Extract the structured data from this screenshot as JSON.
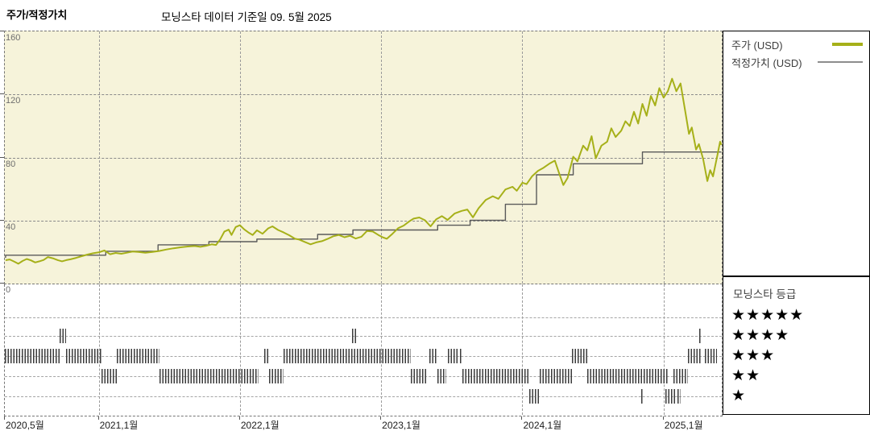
{
  "header": {
    "title": "주가/적정가치",
    "subtitle": "모닝스타 데이터 기준일 09. 5월 2025"
  },
  "legend": {
    "items": [
      {
        "name": "price",
        "label": "주가 (USD)",
        "color": "#a6b019",
        "thickness": 4
      },
      {
        "name": "fair-value",
        "label": "적정가치 (USD)",
        "color": "#8d8d8d",
        "thickness": 2
      }
    ]
  },
  "ratings_legend": {
    "title": "모닝스타 등급",
    "rows": [
      {
        "stars": 5,
        "label": "★★★★★"
      },
      {
        "stars": 4,
        "label": "★★★★"
      },
      {
        "stars": 3,
        "label": "★★★"
      },
      {
        "stars": 2,
        "label": "★★"
      },
      {
        "stars": 1,
        "label": "★"
      }
    ]
  },
  "chart_data": {
    "type": "line",
    "title": "주가/적정가치",
    "subtitle": "모닝스타 데이터 기준일 09. 5월 2025",
    "background": "#f6f3da",
    "grid": true,
    "legend_position": "right",
    "x_range": [
      2020.335,
      2025.412
    ],
    "y_range": [
      0,
      160
    ],
    "y_ticks": [
      {
        "value": 160,
        "label": "160"
      },
      {
        "value": 120,
        "label": "120"
      },
      {
        "value": 80,
        "label": "80"
      },
      {
        "value": 40,
        "label": "40"
      },
      {
        "value": 0,
        "label": "0"
      }
    ],
    "x_ticks": [
      {
        "year": 2020.335,
        "label": "2020,5월"
      },
      {
        "year": 2021.0,
        "label": "2021,1월"
      },
      {
        "year": 2022.0,
        "label": "2022,1월"
      },
      {
        "year": 2023.0,
        "label": "2023,1월"
      },
      {
        "year": 2024.0,
        "label": "2024,1월"
      },
      {
        "year": 2025.0,
        "label": "2025,1월"
      }
    ],
    "series": [
      {
        "name": "주가 (USD)",
        "style": "line",
        "color": "#a6b019",
        "stroke_width": 2,
        "points": [
          [
            2020.34,
            14.8
          ],
          [
            2020.37,
            15.3
          ],
          [
            2020.4,
            14.0
          ],
          [
            2020.43,
            12.6
          ],
          [
            2020.46,
            14.3
          ],
          [
            2020.49,
            15.6
          ],
          [
            2020.52,
            14.7
          ],
          [
            2020.55,
            13.4
          ],
          [
            2020.58,
            14.1
          ],
          [
            2020.61,
            15.0
          ],
          [
            2020.64,
            16.8
          ],
          [
            2020.68,
            15.9
          ],
          [
            2020.71,
            14.9
          ],
          [
            2020.74,
            14.1
          ],
          [
            2020.77,
            14.9
          ],
          [
            2020.8,
            15.4
          ],
          [
            2020.84,
            16.3
          ],
          [
            2020.88,
            17.4
          ],
          [
            2020.92,
            18.4
          ],
          [
            2020.96,
            19.2
          ],
          [
            2021.0,
            19.8
          ],
          [
            2021.04,
            21.0
          ],
          [
            2021.08,
            18.6
          ],
          [
            2021.12,
            19.4
          ],
          [
            2021.16,
            18.9
          ],
          [
            2021.2,
            19.6
          ],
          [
            2021.24,
            20.3
          ],
          [
            2021.28,
            20.1
          ],
          [
            2021.33,
            19.6
          ],
          [
            2021.38,
            20.1
          ],
          [
            2021.43,
            20.7
          ],
          [
            2021.48,
            21.6
          ],
          [
            2021.53,
            22.4
          ],
          [
            2021.58,
            23.0
          ],
          [
            2021.63,
            23.5
          ],
          [
            2021.68,
            23.8
          ],
          [
            2021.72,
            23.3
          ],
          [
            2021.76,
            24.0
          ],
          [
            2021.8,
            24.9
          ],
          [
            2021.83,
            24.5
          ],
          [
            2021.86,
            28.0
          ],
          [
            2021.89,
            33.0
          ],
          [
            2021.92,
            34.2
          ],
          [
            2021.94,
            30.8
          ],
          [
            2021.97,
            35.9
          ],
          [
            2022.0,
            37.0
          ],
          [
            2022.03,
            34.4
          ],
          [
            2022.06,
            32.4
          ],
          [
            2022.09,
            30.8
          ],
          [
            2022.12,
            33.8
          ],
          [
            2022.16,
            31.6
          ],
          [
            2022.2,
            35.0
          ],
          [
            2022.23,
            36.3
          ],
          [
            2022.27,
            34.0
          ],
          [
            2022.31,
            32.4
          ],
          [
            2022.35,
            30.6
          ],
          [
            2022.39,
            28.4
          ],
          [
            2022.42,
            27.9
          ],
          [
            2022.46,
            26.4
          ],
          [
            2022.5,
            24.9
          ],
          [
            2022.54,
            26.1
          ],
          [
            2022.58,
            26.9
          ],
          [
            2022.62,
            28.3
          ],
          [
            2022.66,
            30.0
          ],
          [
            2022.7,
            30.8
          ],
          [
            2022.74,
            29.4
          ],
          [
            2022.78,
            30.3
          ],
          [
            2022.82,
            28.6
          ],
          [
            2022.86,
            29.7
          ],
          [
            2022.9,
            33.4
          ],
          [
            2022.94,
            33.0
          ],
          [
            2022.98,
            30.8
          ],
          [
            2023.01,
            29.4
          ],
          [
            2023.04,
            28.4
          ],
          [
            2023.08,
            31.6
          ],
          [
            2023.12,
            35.1
          ],
          [
            2023.16,
            36.8
          ],
          [
            2023.2,
            39.5
          ],
          [
            2023.23,
            41.2
          ],
          [
            2023.27,
            41.9
          ],
          [
            2023.31,
            40.2
          ],
          [
            2023.35,
            36.3
          ],
          [
            2023.39,
            40.8
          ],
          [
            2023.43,
            42.8
          ],
          [
            2023.47,
            40.4
          ],
          [
            2023.52,
            44.4
          ],
          [
            2023.57,
            46.1
          ],
          [
            2023.61,
            47.0
          ],
          [
            2023.65,
            42.0
          ],
          [
            2023.69,
            47.8
          ],
          [
            2023.74,
            53.0
          ],
          [
            2023.79,
            55.4
          ],
          [
            2023.83,
            53.8
          ],
          [
            2023.88,
            59.7
          ],
          [
            2023.93,
            61.4
          ],
          [
            2023.96,
            58.9
          ],
          [
            2024.0,
            64.0
          ],
          [
            2024.03,
            63.1
          ],
          [
            2024.07,
            68.2
          ],
          [
            2024.11,
            71.5
          ],
          [
            2024.15,
            73.5
          ],
          [
            2024.19,
            76.0
          ],
          [
            2024.23,
            78.0
          ],
          [
            2024.26,
            70.0
          ],
          [
            2024.29,
            62.5
          ],
          [
            2024.32,
            67.0
          ],
          [
            2024.36,
            80.5
          ],
          [
            2024.39,
            77.5
          ],
          [
            2024.43,
            87.5
          ],
          [
            2024.46,
            84.5
          ],
          [
            2024.49,
            93.5
          ],
          [
            2024.52,
            79.5
          ],
          [
            2024.56,
            87.5
          ],
          [
            2024.6,
            90.0
          ],
          [
            2024.63,
            98.5
          ],
          [
            2024.66,
            93.0
          ],
          [
            2024.7,
            97.0
          ],
          [
            2024.73,
            103.0
          ],
          [
            2024.76,
            100.0
          ],
          [
            2024.79,
            109.0
          ],
          [
            2024.82,
            101.5
          ],
          [
            2024.85,
            114.0
          ],
          [
            2024.88,
            106.5
          ],
          [
            2024.91,
            119.0
          ],
          [
            2024.94,
            113.0
          ],
          [
            2024.97,
            124.0
          ],
          [
            2025.0,
            118.0
          ],
          [
            2025.03,
            122.0
          ],
          [
            2025.06,
            130.0
          ],
          [
            2025.09,
            122.0
          ],
          [
            2025.12,
            127.0
          ],
          [
            2025.15,
            111.0
          ],
          [
            2025.18,
            95.0
          ],
          [
            2025.2,
            99.0
          ],
          [
            2025.23,
            85.0
          ],
          [
            2025.25,
            88.5
          ],
          [
            2025.28,
            79.0
          ],
          [
            2025.31,
            65.0
          ],
          [
            2025.33,
            72.0
          ],
          [
            2025.35,
            68.0
          ],
          [
            2025.38,
            81.0
          ],
          [
            2025.4,
            90.0
          ],
          [
            2025.41,
            88.0
          ]
        ]
      },
      {
        "name": "적정가치 (USD)",
        "style": "step",
        "color": "#5a5a5a",
        "stroke_width": 1.4,
        "points": [
          [
            2020.34,
            16.3
          ],
          [
            2021.05,
            18.0
          ],
          [
            2021.42,
            20.5
          ],
          [
            2021.78,
            24.6
          ],
          [
            2022.12,
            26.6
          ],
          [
            2022.55,
            28.2
          ],
          [
            2022.8,
            31.2
          ],
          [
            2023.4,
            34.0
          ],
          [
            2023.63,
            37.0
          ],
          [
            2023.88,
            40.2
          ],
          [
            2024.1,
            50.3
          ],
          [
            2024.36,
            69.0
          ],
          [
            2024.85,
            76.0
          ],
          [
            2025.13,
            83.5
          ],
          [
            2025.41,
            83.5
          ]
        ]
      }
    ],
    "ratings": {
      "row_order": [
        5,
        4,
        3,
        2,
        1
      ],
      "segments": [
        {
          "stars": 3,
          "start": 2020.335,
          "end": 2020.72
        },
        {
          "stars": 4,
          "start": 2020.72,
          "end": 2020.77
        },
        {
          "stars": 3,
          "start": 2020.77,
          "end": 2021.02
        },
        {
          "stars": 2,
          "start": 2021.02,
          "end": 2021.13
        },
        {
          "stars": 3,
          "start": 2021.13,
          "end": 2021.43
        },
        {
          "stars": 2,
          "start": 2021.43,
          "end": 2022.13
        },
        {
          "stars": 3,
          "start": 2022.17,
          "end": 2022.205
        },
        {
          "stars": 2,
          "start": 2022.205,
          "end": 2022.31
        },
        {
          "stars": 3,
          "start": 2022.31,
          "end": 2023.21
        },
        {
          "stars": 4,
          "start": 2022.795,
          "end": 2022.82
        },
        {
          "stars": 2,
          "start": 2023.21,
          "end": 2023.32
        },
        {
          "stars": 3,
          "start": 2023.34,
          "end": 2023.39
        },
        {
          "stars": 2,
          "start": 2023.4,
          "end": 2023.46
        },
        {
          "stars": 3,
          "start": 2023.47,
          "end": 2023.545
        },
        {
          "stars": 3,
          "start": 2023.56,
          "end": 2023.575
        },
        {
          "stars": 2,
          "start": 2023.575,
          "end": 2024.05
        },
        {
          "stars": 1,
          "start": 2024.05,
          "end": 2024.12
        },
        {
          "stars": 2,
          "start": 2024.12,
          "end": 2024.35
        },
        {
          "stars": 3,
          "start": 2024.35,
          "end": 2024.46
        },
        {
          "stars": 2,
          "start": 2024.46,
          "end": 2025.03
        },
        {
          "stars": 1,
          "start": 2024.84,
          "end": 2024.855
        },
        {
          "stars": 1,
          "start": 2025.01,
          "end": 2025.08
        },
        {
          "stars": 2,
          "start": 2025.07,
          "end": 2025.17
        },
        {
          "stars": 1,
          "start": 2025.1,
          "end": 2025.12
        },
        {
          "stars": 3,
          "start": 2025.17,
          "end": 2025.27
        },
        {
          "stars": 4,
          "start": 2025.25,
          "end": 2025.27
        },
        {
          "stars": 3,
          "start": 2025.29,
          "end": 2025.38
        }
      ]
    }
  }
}
